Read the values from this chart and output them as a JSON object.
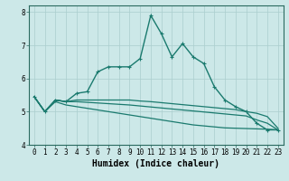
{
  "title": "",
  "xlabel": "Humidex (Indice chaleur)",
  "xlim": [
    -0.5,
    23.5
  ],
  "ylim": [
    4,
    8.2
  ],
  "xticks": [
    0,
    1,
    2,
    3,
    4,
    5,
    6,
    7,
    8,
    9,
    10,
    11,
    12,
    13,
    14,
    15,
    16,
    17,
    18,
    19,
    20,
    21,
    22,
    23
  ],
  "yticks": [
    4,
    5,
    6,
    7,
    8
  ],
  "bg_color": "#cce8e8",
  "grid_color": "#aacece",
  "line_color": "#1a7a6e",
  "lines": [
    {
      "x": [
        0,
        1,
        2,
        3,
        4,
        5,
        6,
        7,
        8,
        9,
        10,
        11,
        12,
        13,
        14,
        15,
        16,
        17,
        18,
        19,
        20,
        21,
        22,
        23
      ],
      "y": [
        5.45,
        5.0,
        5.35,
        5.3,
        5.55,
        5.6,
        6.2,
        6.35,
        6.35,
        6.35,
        6.6,
        7.9,
        7.35,
        6.65,
        7.05,
        6.65,
        6.45,
        5.75,
        5.35,
        5.15,
        5.0,
        4.65,
        4.45,
        4.45
      ],
      "marker": true,
      "linewidth": 1.0
    },
    {
      "x": [
        0,
        1,
        2,
        3,
        4,
        5,
        6,
        7,
        8,
        9,
        10,
        11,
        12,
        13,
        14,
        15,
        16,
        17,
        18,
        19,
        20,
        21,
        22,
        23
      ],
      "y": [
        5.45,
        5.0,
        5.35,
        5.3,
        5.35,
        5.35,
        5.35,
        5.35,
        5.35,
        5.35,
        5.32,
        5.3,
        5.27,
        5.24,
        5.21,
        5.18,
        5.15,
        5.12,
        5.09,
        5.06,
        5.0,
        4.95,
        4.85,
        4.5
      ],
      "marker": false,
      "linewidth": 0.9
    },
    {
      "x": [
        0,
        1,
        2,
        3,
        4,
        5,
        6,
        7,
        8,
        9,
        10,
        11,
        12,
        13,
        14,
        15,
        16,
        17,
        18,
        19,
        20,
        21,
        22,
        23
      ],
      "y": [
        5.45,
        5.0,
        5.35,
        5.3,
        5.3,
        5.28,
        5.26,
        5.24,
        5.22,
        5.2,
        5.17,
        5.14,
        5.11,
        5.08,
        5.05,
        5.02,
        4.99,
        4.96,
        4.93,
        4.9,
        4.87,
        4.75,
        4.65,
        4.45
      ],
      "marker": false,
      "linewidth": 0.9
    },
    {
      "x": [
        0,
        1,
        2,
        3,
        4,
        5,
        6,
        7,
        8,
        9,
        10,
        11,
        12,
        13,
        14,
        15,
        16,
        17,
        18,
        19,
        20,
        21,
        22,
        23
      ],
      "y": [
        5.45,
        5.0,
        5.3,
        5.2,
        5.15,
        5.1,
        5.05,
        5.0,
        4.95,
        4.9,
        4.85,
        4.8,
        4.75,
        4.7,
        4.65,
        4.6,
        4.57,
        4.54,
        4.51,
        4.5,
        4.49,
        4.48,
        4.47,
        4.45
      ],
      "marker": false,
      "linewidth": 0.9
    }
  ],
  "figsize": [
    3.2,
    2.0
  ],
  "dpi": 100,
  "tick_fontsize": 5.5,
  "label_fontsize": 7.0
}
